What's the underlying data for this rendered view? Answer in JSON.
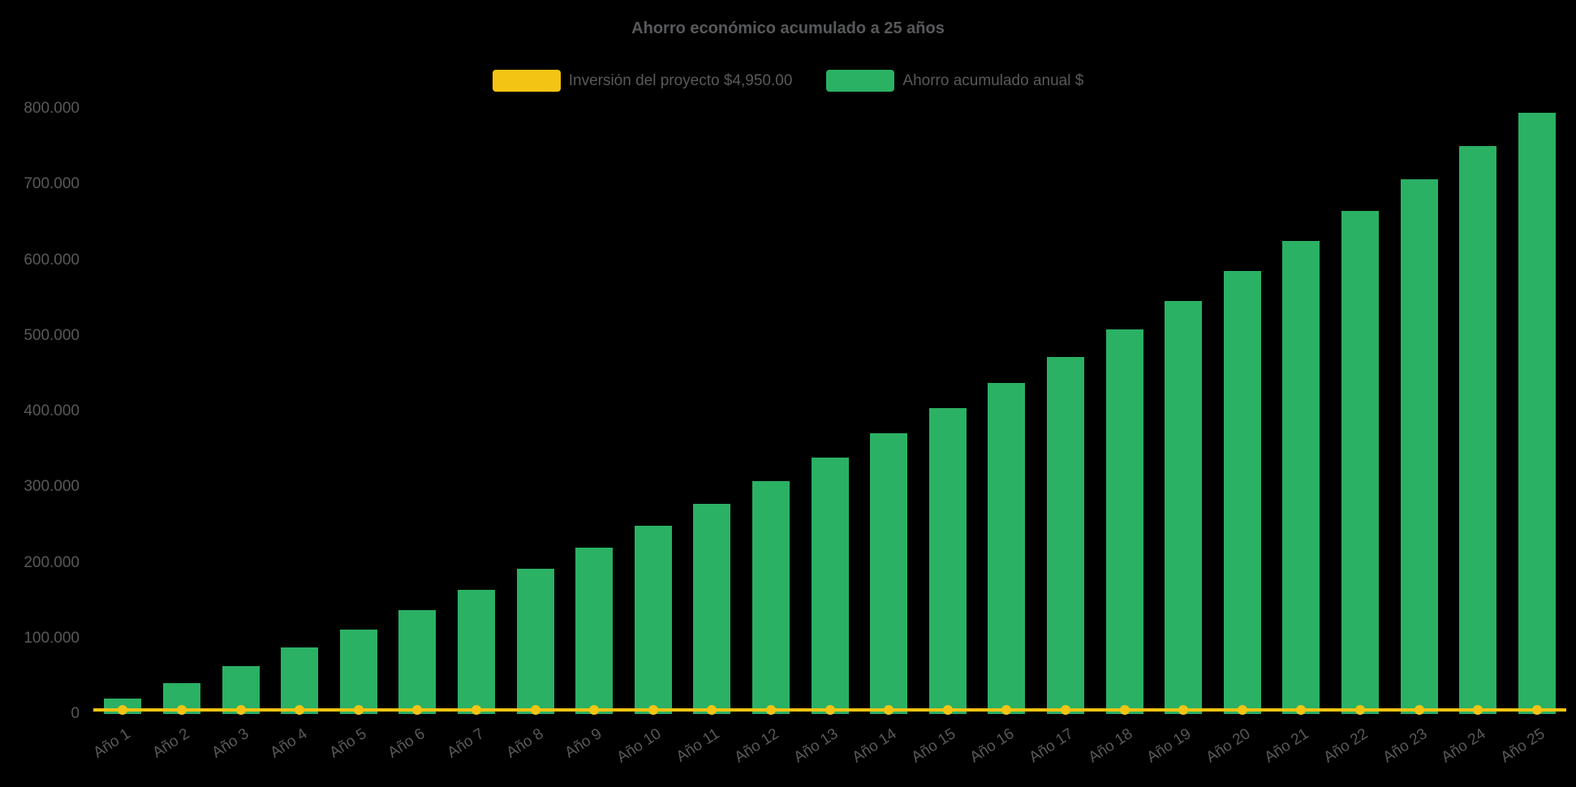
{
  "chart_data": {
    "type": "bar",
    "title": "Ahorro económico acumulado a 25 años",
    "background": "#000000",
    "text_color": "#58595B",
    "grid": false,
    "legend_position": "top",
    "categories": [
      "Año 1",
      "Año 2",
      "Año 3",
      "Año 4",
      "Año 5",
      "Año 6",
      "Año 7",
      "Año 8",
      "Año 9",
      "Año 10",
      "Año 11",
      "Año 12",
      "Año 13",
      "Año 14",
      "Año 15",
      "Año 16",
      "Año 17",
      "Año 18",
      "Año 19",
      "Año 20",
      "Año 21",
      "Año 22",
      "Año 23",
      "Año 24",
      "Año 25"
    ],
    "y_axis": {
      "min": 0,
      "max": 800000,
      "tick_interval": 100000,
      "tick_labels": [
        "0",
        "100.000",
        "200.000",
        "300.000",
        "400.000",
        "500.000",
        "600.000",
        "700.000",
        "800.000"
      ]
    },
    "series": [
      {
        "name": "Inversión del proyecto $4,950.00",
        "type": "line",
        "color": "#F3C413",
        "marker": "circle",
        "values": [
          4950,
          4950,
          4950,
          4950,
          4950,
          4950,
          4950,
          4950,
          4950,
          4950,
          4950,
          4950,
          4950,
          4950,
          4950,
          4950,
          4950,
          4950,
          4950,
          4950,
          4950,
          4950,
          4950,
          4950,
          4950
        ]
      },
      {
        "name": "Ahorro acumulado anual $",
        "type": "bar",
        "color": "#2BB164",
        "values": [
          20000,
          41000,
          63000,
          88000,
          112000,
          137000,
          164000,
          192000,
          220000,
          249000,
          278000,
          308000,
          339000,
          371000,
          404000,
          437000,
          472000,
          508000,
          546000,
          585000,
          625000,
          665000,
          707000,
          751000,
          795000
        ]
      }
    ]
  }
}
